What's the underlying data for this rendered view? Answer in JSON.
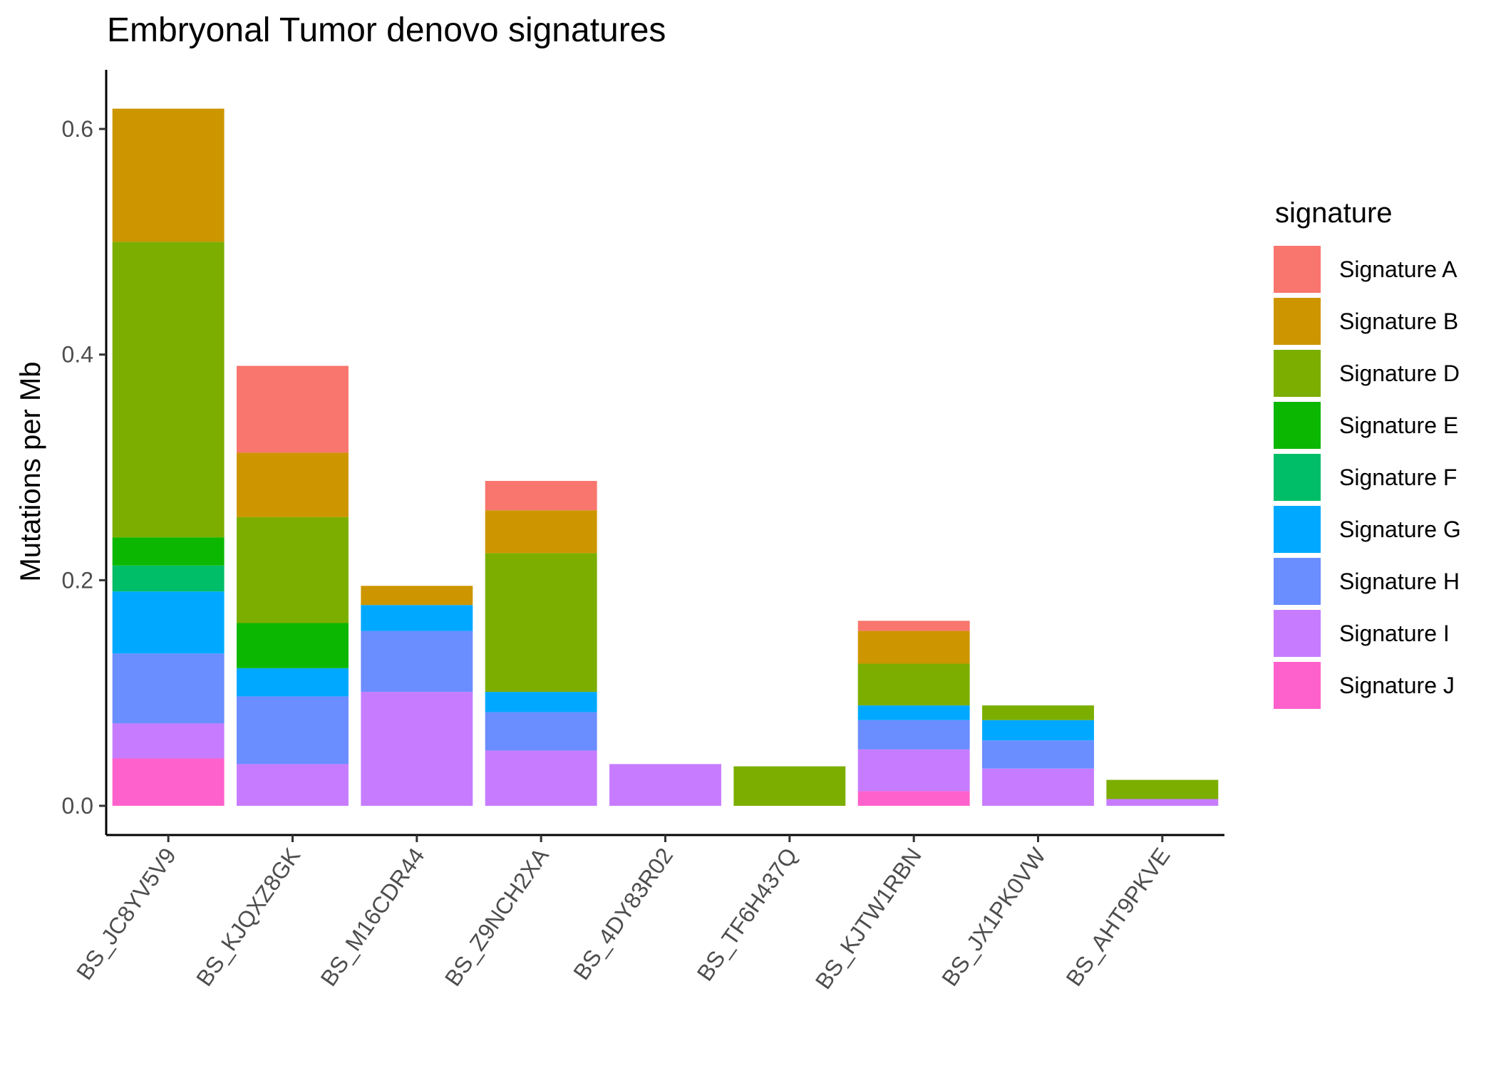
{
  "chart_data": {
    "type": "bar",
    "stacked": true,
    "title": "Embryonal Tumor denovo signatures",
    "ylabel": "Mutations per Mb",
    "ylim": [
      -0.03,
      0.65
    ],
    "yticks": [
      0.0,
      0.2,
      0.4,
      0.6
    ],
    "ytick_labels": [
      "0.0",
      "0.2",
      "0.4",
      "0.6"
    ],
    "grid": false,
    "legend_title": "signature",
    "legend_position": "right",
    "categories": [
      "BS_JC8YV5V9",
      "BS_KJQXZ8GK",
      "BS_M16CDR44",
      "BS_Z9NCH2XA",
      "BS_4DY83R02",
      "BS_TF6H437Q",
      "BS_KJTW1RBN",
      "BS_JX1PK0VW",
      "BS_AHT9PKVE"
    ],
    "stack_order_bottom_to_top": [
      "Signature J",
      "Signature I",
      "Signature H",
      "Signature G",
      "Signature F",
      "Signature E",
      "Signature D",
      "Signature B",
      "Signature A"
    ],
    "series": [
      {
        "name": "Signature A",
        "color": "#F8766D",
        "values": [
          0,
          0.077,
          0,
          0.026,
          0,
          0,
          0.009,
          0,
          0
        ]
      },
      {
        "name": "Signature B",
        "color": "#CD9600",
        "values": [
          0.118,
          0.057,
          0.017,
          0.038,
          0,
          0,
          0.029,
          0,
          0
        ]
      },
      {
        "name": "Signature D",
        "color": "#7CAE00",
        "values": [
          0.262,
          0.094,
          0,
          0.123,
          0,
          0.035,
          0.037,
          0.013,
          0.017
        ]
      },
      {
        "name": "Signature E",
        "color": "#0CB702",
        "values": [
          0.025,
          0.04,
          0,
          0,
          0,
          0,
          0,
          0,
          0
        ]
      },
      {
        "name": "Signature F",
        "color": "#00BE67",
        "values": [
          0.023,
          0,
          0,
          0,
          0,
          0,
          0,
          0,
          0
        ]
      },
      {
        "name": "Signature G",
        "color": "#00A9FF",
        "values": [
          0.055,
          0.025,
          0.023,
          0.018,
          0,
          0,
          0.013,
          0.018,
          0
        ]
      },
      {
        "name": "Signature H",
        "color": "#6A8DFF",
        "values": [
          0.062,
          0.06,
          0.054,
          0.034,
          0,
          0,
          0.026,
          0.025,
          0
        ]
      },
      {
        "name": "Signature I",
        "color": "#C77CFF",
        "values": [
          0.031,
          0.037,
          0.101,
          0.049,
          0.037,
          0,
          0.037,
          0.033,
          0.006
        ]
      },
      {
        "name": "Signature J",
        "color": "#FF61CC",
        "values": [
          0.042,
          0,
          0,
          0,
          0,
          0,
          0.013,
          0,
          0
        ]
      }
    ]
  }
}
